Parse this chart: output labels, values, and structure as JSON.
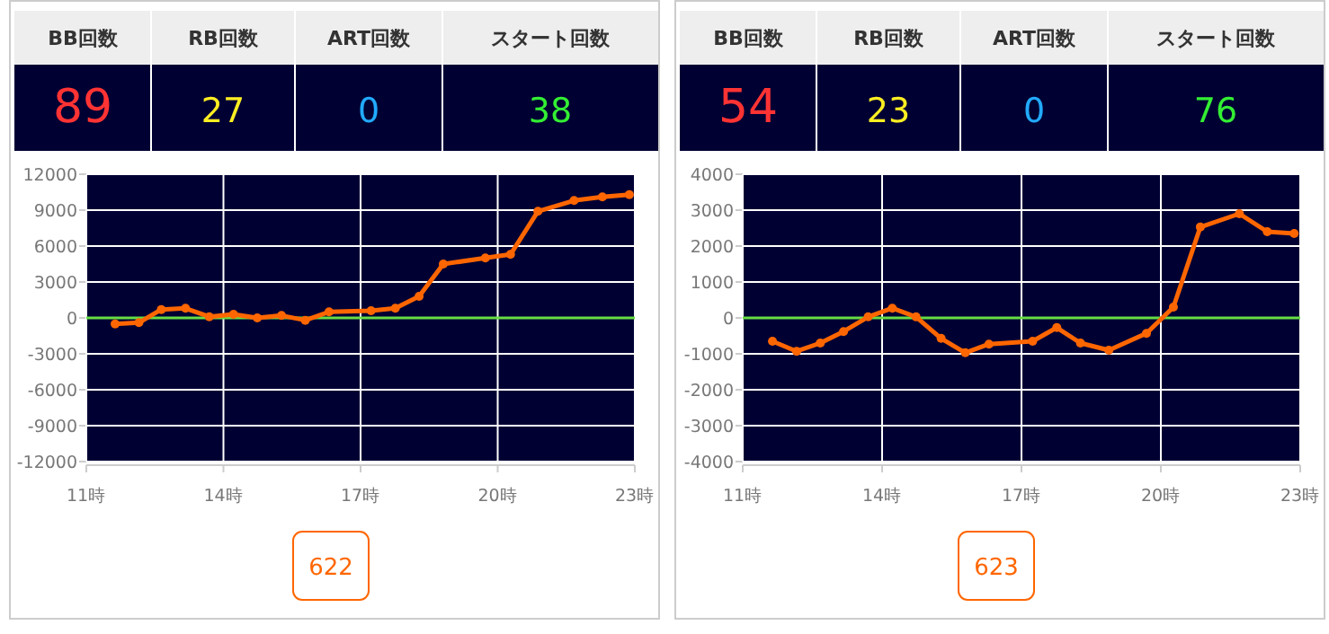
{
  "chart_data": [
    {
      "type": "line",
      "x": [
        11.63,
        12.15,
        12.64,
        13.17,
        13.69,
        14.22,
        14.74,
        15.27,
        15.79,
        16.31,
        17.23,
        17.76,
        18.28,
        18.81,
        19.73,
        20.28,
        20.88,
        21.67,
        22.29,
        22.88
      ],
      "series": [
        {
          "color": "#ff6600",
          "values": [
            -500,
            -400,
            700,
            800,
            100,
            300,
            0,
            200,
            -200,
            500,
            600,
            800,
            1800,
            4500,
            5000,
            5300,
            8900,
            9800,
            10100,
            10300
          ]
        }
      ],
      "xlim": [
        11,
        23
      ],
      "xticks": [
        {
          "value": 11,
          "label": "11時"
        },
        {
          "value": 14,
          "label": "14時"
        },
        {
          "value": 17,
          "label": "17時"
        },
        {
          "value": 20,
          "label": "20時"
        },
        {
          "value": 23,
          "label": "23時"
        }
      ],
      "ylim": [
        -12000,
        12000
      ],
      "yticks": [
        -12000,
        -9000,
        -6000,
        -3000,
        0,
        3000,
        6000,
        9000,
        12000
      ],
      "grid": true,
      "marker": "circle",
      "line_style": "solid",
      "ref_lines": [
        {
          "axis": "y",
          "value": 0,
          "color": "#66dd44"
        }
      ],
      "annotations": [
        "BB回数",
        "RB回数",
        "ART回数",
        "スタート回数",
        "89",
        "27",
        "0",
        "38",
        "622"
      ]
    },
    {
      "type": "line",
      "x": [
        11.64,
        12.16,
        12.67,
        13.17,
        13.7,
        14.22,
        14.73,
        15.27,
        15.79,
        16.3,
        17.24,
        17.76,
        18.27,
        18.88,
        19.69,
        20.27,
        20.85,
        21.69,
        22.29,
        22.87
      ],
      "series": [
        {
          "color": "#ff6600",
          "values": [
            -650,
            -930,
            -700,
            -380,
            30,
            270,
            30,
            -570,
            -970,
            -730,
            -650,
            -270,
            -700,
            -900,
            -430,
            300,
            2530,
            2900,
            2400,
            2350
          ]
        }
      ],
      "xlim": [
        11,
        23
      ],
      "xticks": [
        {
          "value": 11,
          "label": "11時"
        },
        {
          "value": 14,
          "label": "14時"
        },
        {
          "value": 17,
          "label": "17時"
        },
        {
          "value": 20,
          "label": "20時"
        },
        {
          "value": 23,
          "label": "23時"
        }
      ],
      "ylim": [
        -4000,
        4000
      ],
      "yticks": [
        -4000,
        -3000,
        -2000,
        -1000,
        0,
        1000,
        2000,
        3000,
        4000
      ],
      "grid": true,
      "marker": "circle",
      "line_style": "solid",
      "ref_lines": [
        {
          "axis": "y",
          "value": 0,
          "color": "#66dd44"
        }
      ],
      "annotations": [
        "BB回数",
        "RB回数",
        "ART回数",
        "スタート回数",
        "54",
        "23",
        "0",
        "76",
        "623"
      ]
    }
  ]
}
